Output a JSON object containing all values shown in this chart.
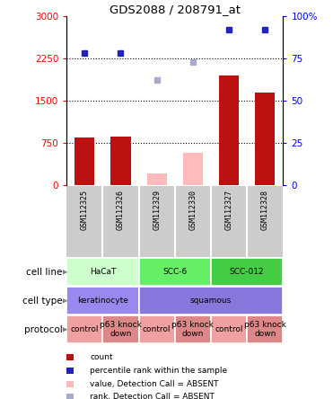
{
  "title": "GDS2088 / 208791_at",
  "samples": [
    "GSM112325",
    "GSM112326",
    "GSM112329",
    "GSM112330",
    "GSM112327",
    "GSM112328"
  ],
  "count_values": [
    850,
    870,
    null,
    null,
    1950,
    1650
  ],
  "count_absent": [
    null,
    null,
    220,
    580,
    null,
    null
  ],
  "percentile_values": [
    78,
    78,
    null,
    null,
    92,
    92
  ],
  "percentile_absent": [
    null,
    null,
    62,
    73,
    null,
    null
  ],
  "ylim_left": [
    0,
    3000
  ],
  "ylim_right": [
    0,
    100
  ],
  "yticks_left": [
    0,
    750,
    1500,
    2250,
    3000
  ],
  "yticks_right": [
    0,
    25,
    50,
    75,
    100
  ],
  "ytick_labels_left": [
    "0",
    "750",
    "1500",
    "2250",
    "3000"
  ],
  "ytick_labels_right": [
    "0",
    "25",
    "50",
    "75",
    "100%"
  ],
  "cell_line_groups": [
    {
      "label": "HaCaT",
      "start": 0,
      "end": 2,
      "color": "#ccffcc"
    },
    {
      "label": "SCC-6",
      "start": 2,
      "end": 4,
      "color": "#66ee66"
    },
    {
      "label": "SCC-012",
      "start": 4,
      "end": 6,
      "color": "#44cc44"
    }
  ],
  "cell_type_groups": [
    {
      "label": "keratinocyte",
      "start": 0,
      "end": 2,
      "color": "#9988ee"
    },
    {
      "label": "squamous",
      "start": 2,
      "end": 6,
      "color": "#8877dd"
    }
  ],
  "protocol_groups": [
    {
      "label": "control",
      "start": 0,
      "end": 1,
      "color": "#f0a0a0"
    },
    {
      "label": "p63 knock\ndown",
      "start": 1,
      "end": 2,
      "color": "#dd8888"
    },
    {
      "label": "control",
      "start": 2,
      "end": 3,
      "color": "#f0a0a0"
    },
    {
      "label": "p63 knock\ndown",
      "start": 3,
      "end": 4,
      "color": "#dd8888"
    },
    {
      "label": "control",
      "start": 4,
      "end": 5,
      "color": "#f0a0a0"
    },
    {
      "label": "p63 knock\ndown",
      "start": 5,
      "end": 6,
      "color": "#dd8888"
    }
  ],
  "bar_color_present": "#bb1111",
  "bar_color_absent": "#ffbbbb",
  "dot_color_present": "#2222bb",
  "dot_color_absent": "#aaaacc",
  "bar_width": 0.55,
  "sample_bg_color": "#cccccc",
  "row_labels": [
    "cell line",
    "cell type",
    "protocol"
  ],
  "legend_items": [
    {
      "color": "#bb1111",
      "label": "count"
    },
    {
      "color": "#2222bb",
      "label": "percentile rank within the sample"
    },
    {
      "color": "#ffbbbb",
      "label": "value, Detection Call = ABSENT"
    },
    {
      "color": "#aaaacc",
      "label": "rank, Detection Call = ABSENT"
    }
  ]
}
